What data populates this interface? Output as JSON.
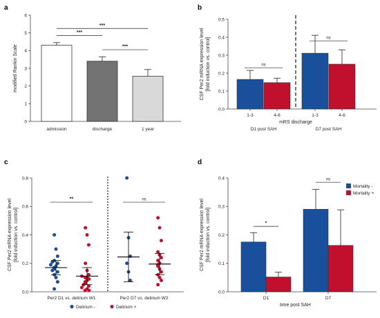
{
  "colors": {
    "blue": "#1a4f9c",
    "red": "#c0102e",
    "dark_gray": "#737373",
    "light_gray": "#d9d9d9",
    "white": "#ffffff"
  },
  "chart_data": [
    {
      "panel": "a",
      "type": "bar",
      "ylabel": "modified Rankin Scale",
      "ylim": [
        0,
        6
      ],
      "yticks": [
        "0",
        "1",
        "2",
        "3",
        "4",
        "5",
        "6"
      ],
      "categories": [
        "admission",
        "discharge",
        "1 year"
      ],
      "values": [
        4.3,
        3.4,
        2.55
      ],
      "errors": [
        0.15,
        0.25,
        0.38
      ],
      "fills": [
        "#ffffff",
        "#737373",
        "#d9d9d9"
      ],
      "comparisons": [
        {
          "from": 0,
          "to": 1,
          "label": "***",
          "y": 4.85
        },
        {
          "from": 0,
          "to": 2,
          "label": "***",
          "y": 5.25
        },
        {
          "from": 1,
          "to": 2,
          "label": "***",
          "y": 4.05
        }
      ]
    },
    {
      "panel": "b",
      "type": "bar",
      "ylabel_lines": [
        "CSF Per2 mRNA expression level",
        "[fold induction vs. control]"
      ],
      "ylim": [
        0,
        0.5
      ],
      "yticks": [
        "0.0",
        "0.1",
        "0.2",
        "0.3",
        "0.4",
        "0.5"
      ],
      "xlabel": "mRS discharge",
      "categories": [
        "1-3",
        "4-6",
        "1-3",
        "4-6"
      ],
      "groups": [
        "D1 post SAH",
        "D7 post SAH"
      ],
      "values": [
        0.165,
        0.147,
        0.311,
        0.25
      ],
      "errors": [
        0.05,
        0.025,
        0.1,
        0.08
      ],
      "colors": [
        "blue",
        "red",
        "blue",
        "red"
      ],
      "comparisons": [
        {
          "from": 0,
          "to": 1,
          "label": "ns",
          "y": 0.23
        },
        {
          "from": 2,
          "to": 3,
          "label": "ns",
          "y": 0.38
        }
      ]
    },
    {
      "panel": "c",
      "type": "scatter",
      "ylabel_lines": [
        "CSF Per2 mRNA expression level",
        "[fold induction vs. control]"
      ],
      "ylim": [
        0,
        0.8
      ],
      "yticks": [
        "0.0",
        "0.2",
        "0.4",
        "0.6",
        "0.8"
      ],
      "group_labels": [
        "Per2 D1 vs. delirium W1",
        "Per2 D7 vs. delirium W2"
      ],
      "legend": [
        "Delirium -",
        "Delirium +"
      ],
      "series": [
        {
          "name": "Delirium -",
          "group": 0,
          "mean": 0.17,
          "sd_low": 0.12,
          "sd_high": 0.22,
          "values": [
            0.4,
            0.3,
            0.25,
            0.22,
            0.21,
            0.2,
            0.19,
            0.18,
            0.17,
            0.16,
            0.15,
            0.14,
            0.12,
            0.1,
            0.07,
            0.02
          ]
        },
        {
          "name": "Delirium +",
          "group": 0,
          "mean": 0.11,
          "sd_low": 0.05,
          "sd_high": 0.17,
          "values": [
            0.45,
            0.4,
            0.33,
            0.2,
            0.15,
            0.12,
            0.11,
            0.1,
            0.1,
            0.09,
            0.08,
            0.07,
            0.06,
            0.05,
            0.04,
            0.03,
            0.02,
            0.01,
            0.01
          ]
        },
        {
          "name": "Delirium -",
          "group": 1,
          "mean": 0.245,
          "sd_low": 0.07,
          "sd_high": 0.42,
          "values": [
            0.8,
            0.38,
            0.25,
            0.2,
            0.14,
            0.08
          ]
        },
        {
          "name": "Delirium +",
          "group": 1,
          "mean": 0.195,
          "sd_low": 0.12,
          "sd_high": 0.27,
          "values": [
            0.52,
            0.45,
            0.36,
            0.28,
            0.26,
            0.24,
            0.22,
            0.2,
            0.19,
            0.18,
            0.16,
            0.14,
            0.12,
            0.1,
            0.08,
            0.05
          ]
        }
      ],
      "comparisons": [
        {
          "group": 0,
          "label": "**",
          "y": 0.63
        },
        {
          "group": 1,
          "label": "ns",
          "y": 0.63
        }
      ]
    },
    {
      "panel": "d",
      "type": "bar",
      "ylabel_lines": [
        "CSF Per2 mRNA expression level",
        "[fold induction vs. control]"
      ],
      "ylim": [
        0,
        0.4
      ],
      "yticks": [
        "0.0",
        "0.1",
        "0.2",
        "0.3",
        "0.4"
      ],
      "xlabel": "time post SAH",
      "categories": [
        "D1",
        "D7"
      ],
      "series": [
        {
          "name": "Mortality -",
          "color": "blue",
          "values": [
            0.175,
            0.29
          ],
          "errors": [
            0.033,
            0.07
          ]
        },
        {
          "name": "Mortality +",
          "color": "red",
          "values": [
            0.052,
            0.163
          ],
          "errors": [
            0.017,
            0.125
          ]
        }
      ],
      "comparisons": [
        {
          "category": 0,
          "label": "*",
          "y": 0.23
        },
        {
          "category": 1,
          "label": "ns",
          "y": 0.385
        }
      ]
    }
  ]
}
